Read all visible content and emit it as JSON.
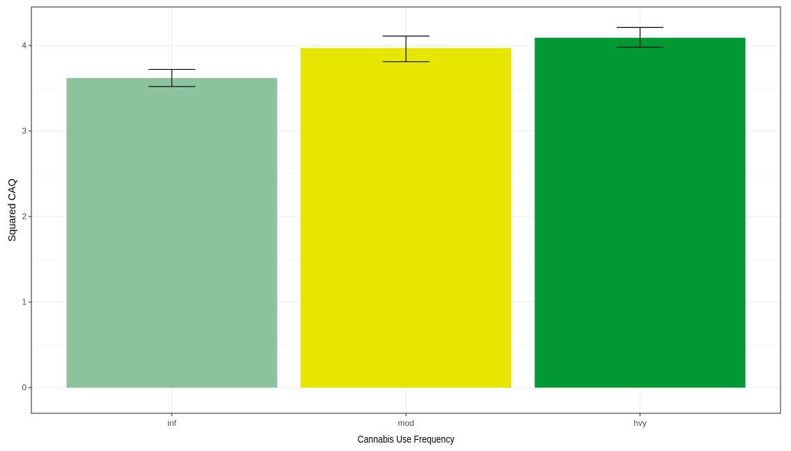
{
  "chart_data": {
    "type": "bar",
    "title": "",
    "xlabel": "Cannabis Use Frequency",
    "ylabel": "Squared CAQ",
    "categories": [
      "inf",
      "mod",
      "hvy"
    ],
    "values": [
      3.62,
      3.97,
      4.09
    ],
    "error_bars": [
      {
        "low": 3.52,
        "high": 3.72
      },
      {
        "low": 3.81,
        "high": 4.11
      },
      {
        "low": 3.98,
        "high": 4.21
      }
    ],
    "bar_colors": [
      "#8cc29e",
      "#e6e600",
      "#009933"
    ],
    "ylim": [
      -0.3,
      4.45
    ],
    "yticks": [
      0,
      1,
      2,
      3,
      4
    ],
    "grid": true,
    "legend": "none"
  }
}
